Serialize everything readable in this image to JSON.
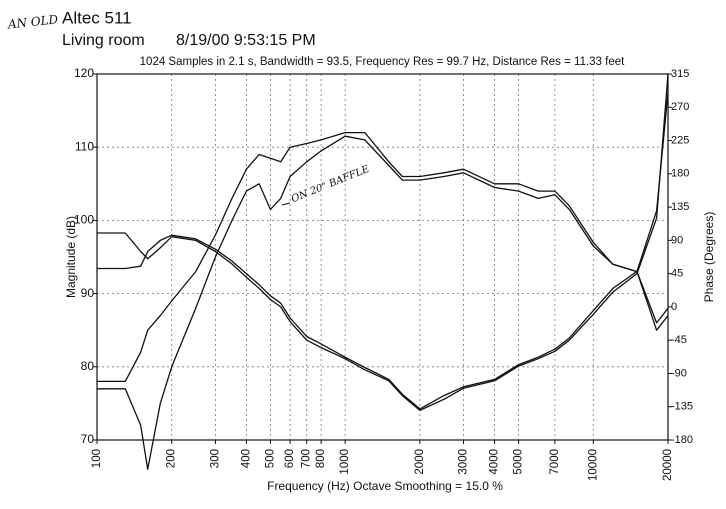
{
  "chart_data": {
    "type": "line",
    "title": "Altec 511",
    "subtitle_lines": [
      "Living room",
      "8/19/00 9:53:15 PM"
    ],
    "subtitle": "1024 Samples in 2.1 s, Bandwidth = 93.5, Frequency Res = 99.7 Hz, Distance Res = 11.33 feet",
    "x_label": "Frequency (Hz) Octave Smoothing = 15.0 %",
    "y_label": "Magnitude (dB)",
    "y2_label": "Phase (Degrees)",
    "annotations": [
      "AN OLD",
      "ON 20\" BAFFLE"
    ],
    "x_scale": "log",
    "grid": true,
    "x": [
      100,
      130,
      150,
      160,
      180,
      200,
      250,
      300,
      350,
      400,
      450,
      500,
      550,
      600,
      700,
      800,
      1000,
      1200,
      1500,
      1700,
      2000,
      2500,
      3000,
      4000,
      5000,
      6000,
      7000,
      8000,
      10000,
      12000,
      15000,
      18000,
      20000
    ],
    "series": [
      {
        "color": "#111111",
        "values": [
          78,
          78,
          82,
          85,
          87,
          89,
          93,
          98,
          103,
          107,
          109,
          108.5,
          108,
          110,
          110.5,
          111,
          112,
          112,
          108,
          106,
          106,
          106.5,
          107,
          105,
          105,
          104,
          104,
          102,
          97,
          94,
          93,
          86,
          88
        ]
      },
      {
        "color": "#111111",
        "values": [
          77,
          77,
          72,
          66,
          75,
          80,
          88,
          95,
          100,
          104,
          105,
          101.5,
          103,
          106,
          108,
          109.5,
          111.5,
          111,
          107.5,
          105.5,
          105.5,
          106,
          106.5,
          104.5,
          104,
          103,
          103.5,
          101.5,
          96.5,
          94,
          93,
          85,
          87
        ]
      },
      {
        "color": "#111111",
        "axis": "y2",
        "values": [
          100,
          100,
          75,
          65,
          80,
          95,
          90,
          75,
          58,
          40,
          25,
          10,
          0,
          -20,
          -45,
          -55,
          -70,
          -85,
          -100,
          -120,
          -140,
          -125,
          -110,
          -100,
          -80,
          -70,
          -60,
          -45,
          -10,
          20,
          45,
          120,
          315
        ]
      },
      {
        "color": "#111111",
        "axis": "y2",
        "values": [
          52,
          52,
          55,
          75,
          90,
          97,
          92,
          78,
          62,
          45,
          30,
          15,
          5,
          -15,
          -40,
          -50,
          -68,
          -82,
          -98,
          -118,
          -138,
          -120,
          -108,
          -98,
          -78,
          -68,
          -57,
          -42,
          -5,
          25,
          48,
          130,
          290
        ]
      }
    ],
    "xlim": [
      100,
      20000
    ],
    "xticks": [
      100,
      200,
      300,
      400,
      500,
      600,
      700,
      800,
      1000,
      2000,
      3000,
      4000,
      5000,
      7000,
      10000,
      20000
    ],
    "ylim": [
      70,
      120
    ],
    "yticks": [
      70,
      80,
      90,
      100,
      110,
      120
    ],
    "y2lim": [
      -180,
      315
    ],
    "y2ticks": [
      -180,
      -135,
      -90,
      -45,
      0,
      45,
      90,
      135,
      180,
      225,
      270,
      315
    ]
  }
}
